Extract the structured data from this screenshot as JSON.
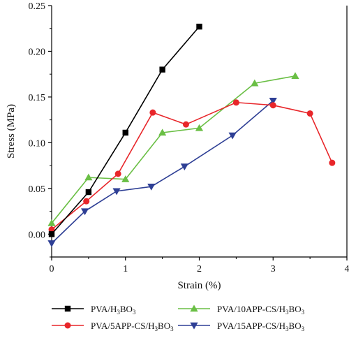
{
  "chart_data": {
    "type": "line",
    "xlabel": "Strain (%)",
    "ylabel": "Stress (MPa)",
    "xlim": [
      0,
      4
    ],
    "ylim": [
      -0.025,
      0.25
    ],
    "xticks": [
      0,
      1,
      2,
      3,
      4
    ],
    "yticks": [
      0.0,
      0.05,
      0.1,
      0.15,
      0.2,
      0.25
    ],
    "xtick_labels": [
      "0",
      "1",
      "2",
      "3",
      "4"
    ],
    "ytick_labels": [
      "0.00",
      "0.05",
      "0.10",
      "0.15",
      "0.20",
      "0.25"
    ],
    "grid": false,
    "legend_position": "bottom",
    "series": [
      {
        "name": "PVA/H3BO3",
        "label_main": "PVA/H",
        "label_parts": [
          [
            "PVA/H",
            ""
          ],
          [
            "3",
            "sub"
          ],
          [
            "BO",
            ""
          ],
          [
            "3",
            "sub"
          ]
        ],
        "color": "#000000",
        "marker": "square",
        "x": [
          0.0,
          0.5,
          1.0,
          1.5,
          2.0
        ],
        "y": [
          0.0,
          0.046,
          0.111,
          0.18,
          0.227
        ]
      },
      {
        "name": "PVA/5APP-CS/H3BO3",
        "label_parts": [
          [
            "PVA/5APP-CS/H",
            ""
          ],
          [
            "3",
            "sub"
          ],
          [
            "BO",
            ""
          ],
          [
            "3",
            "sub"
          ]
        ],
        "color": "#e8262a",
        "marker": "circle",
        "x": [
          0.0,
          0.47,
          0.9,
          1.37,
          1.82,
          2.5,
          3.0,
          3.5,
          3.8
        ],
        "y": [
          0.005,
          0.036,
          0.066,
          0.133,
          0.12,
          0.144,
          0.141,
          0.132,
          0.078
        ]
      },
      {
        "name": "PVA/10APP-CS/H3BO3",
        "label_parts": [
          [
            "PVA/10APP-CS/H",
            ""
          ],
          [
            "3",
            "sub"
          ],
          [
            "BO",
            ""
          ],
          [
            "3",
            "sub"
          ]
        ],
        "color": "#6abf45",
        "marker": "triangle-up",
        "x": [
          0.0,
          0.5,
          1.0,
          1.5,
          2.0,
          2.75,
          3.3
        ],
        "y": [
          0.012,
          0.062,
          0.06,
          0.111,
          0.116,
          0.165,
          0.173
        ]
      },
      {
        "name": "PVA/15APP-CS/H3BO3",
        "label_parts": [
          [
            "PVA/15APP-CS/H",
            ""
          ],
          [
            "3",
            "sub"
          ],
          [
            "BO",
            ""
          ],
          [
            "3",
            "sub"
          ]
        ],
        "color": "#2e3f95",
        "marker": "triangle-down",
        "x": [
          0.0,
          0.45,
          0.88,
          1.35,
          1.8,
          2.45,
          3.0
        ],
        "y": [
          -0.01,
          0.025,
          0.047,
          0.052,
          0.074,
          0.108,
          0.146
        ]
      }
    ]
  }
}
